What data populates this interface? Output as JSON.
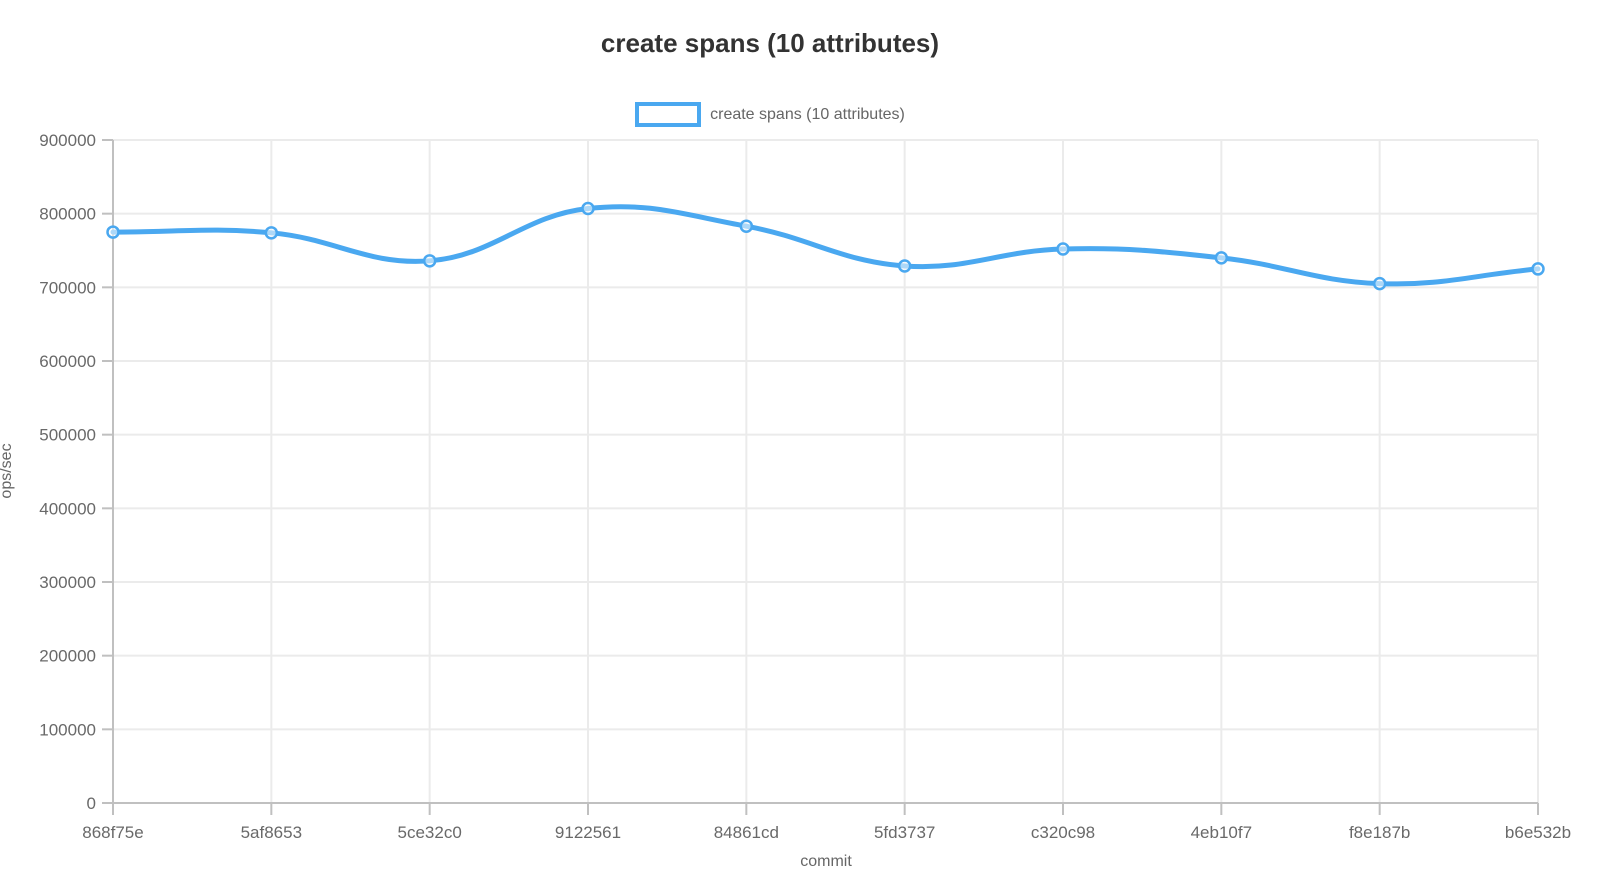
{
  "header": {
    "title": "create spans (10 attributes)"
  },
  "legend": {
    "position": "top",
    "items": [
      {
        "label": "create spans (10 attributes)",
        "color": "#4aa8f0",
        "box_fill": "#ffffff"
      }
    ]
  },
  "colors": {
    "accent": "#4aa8f0",
    "title_text": "#333333",
    "tick_text": "#696969",
    "axis_title_text": "#666666",
    "gridline": "#ebebeb",
    "axis_line": "#c0c0c0",
    "background": "#ffffff"
  },
  "chart_data": {
    "type": "line",
    "title": "create spans (10 attributes)",
    "xlabel": "commit",
    "ylabel": "ops/sec",
    "categories": [
      "868f75e",
      "5af8653",
      "5ce32c0",
      "9122561",
      "84861cd",
      "5fd3737",
      "c320c98",
      "4eb10f7",
      "f8e187b",
      "b6e532b"
    ],
    "series": [
      {
        "name": "create spans (10 attributes)",
        "color": "#4aa8f0",
        "values": [
          775000,
          774000,
          736000,
          807000,
          783000,
          729000,
          752000,
          740000,
          705000,
          725000
        ]
      }
    ],
    "ylim": [
      0,
      900000
    ],
    "yticks": [
      0,
      100000,
      200000,
      300000,
      400000,
      500000,
      600000,
      700000,
      800000,
      900000
    ],
    "grid": true,
    "legend_position": "top",
    "line_style": {
      "smooth": true,
      "tension": 0.4,
      "line_width": 5,
      "point_style": "circle"
    }
  }
}
